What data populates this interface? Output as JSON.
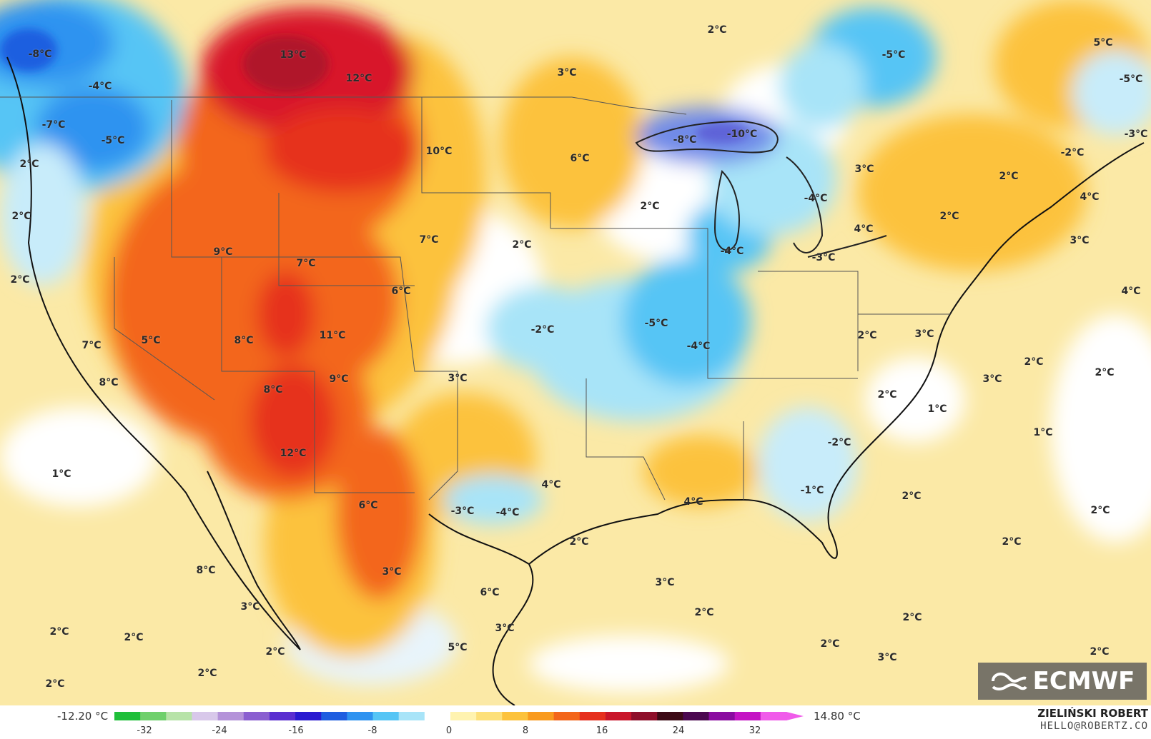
{
  "map": {
    "labels": [
      {
        "text": "-8°C"
      },
      {
        "text": "13°C"
      },
      {
        "text": "12°C"
      },
      {
        "text": "-4°C"
      },
      {
        "text": "3°C"
      },
      {
        "text": "2°C"
      },
      {
        "text": "-5°C"
      },
      {
        "text": "5°C"
      },
      {
        "text": "-7°C"
      },
      {
        "text": "-5°C"
      },
      {
        "text": "10°C"
      },
      {
        "text": "-5°C"
      },
      {
        "text": "6°C"
      },
      {
        "text": "-8°C"
      },
      {
        "text": "-10°C"
      },
      {
        "text": "-3°C"
      },
      {
        "text": "-2°C"
      },
      {
        "text": "2°C"
      },
      {
        "text": "3°C"
      },
      {
        "text": "2°C"
      },
      {
        "text": "4°C"
      },
      {
        "text": "2°C"
      },
      {
        "text": "2°C"
      },
      {
        "text": "-4°C"
      },
      {
        "text": "4°C"
      },
      {
        "text": "3°C"
      },
      {
        "text": "2°C"
      },
      {
        "text": "9°C"
      },
      {
        "text": "7°C"
      },
      {
        "text": "2°C"
      },
      {
        "text": "7°C"
      },
      {
        "text": "-4°C"
      },
      {
        "text": "-3°C"
      },
      {
        "text": "2°C"
      },
      {
        "text": "6°C"
      },
      {
        "text": "4°C"
      },
      {
        "text": "7°C"
      },
      {
        "text": "5°C"
      },
      {
        "text": "8°C"
      },
      {
        "text": "11°C"
      },
      {
        "text": "-2°C"
      },
      {
        "text": "-5°C"
      },
      {
        "text": "-4°C"
      },
      {
        "text": "2°C"
      },
      {
        "text": "3°C"
      },
      {
        "text": "2°C"
      },
      {
        "text": "2°C"
      },
      {
        "text": "8°C"
      },
      {
        "text": "8°C"
      },
      {
        "text": "9°C"
      },
      {
        "text": "3°C"
      },
      {
        "text": "2°C"
      },
      {
        "text": "1°C"
      },
      {
        "text": "3°C"
      },
      {
        "text": "12°C"
      },
      {
        "text": "-2°C"
      },
      {
        "text": "1°C"
      },
      {
        "text": "1°C"
      },
      {
        "text": "4°C"
      },
      {
        "text": "-1°C"
      },
      {
        "text": "4°C"
      },
      {
        "text": "6°C"
      },
      {
        "text": "-3°C"
      },
      {
        "text": "-4°C"
      },
      {
        "text": "2°C"
      },
      {
        "text": "2°C"
      },
      {
        "text": "2°C"
      },
      {
        "text": "2°C"
      },
      {
        "text": "8°C"
      },
      {
        "text": "3°C"
      },
      {
        "text": "6°C"
      },
      {
        "text": "3°C"
      },
      {
        "text": "3°C"
      },
      {
        "text": "3°C"
      },
      {
        "text": "2°C"
      },
      {
        "text": "2°C"
      },
      {
        "text": "2°C"
      },
      {
        "text": "5°C"
      },
      {
        "text": "2°C"
      },
      {
        "text": "2°C"
      },
      {
        "text": "2°C"
      },
      {
        "text": "3°C"
      },
      {
        "text": "2°C"
      },
      {
        "text": "2°C"
      },
      {
        "text": "2°C"
      }
    ]
  },
  "logo": {
    "text": "ECMWF",
    "icon": "ecmwf-logo-icon"
  },
  "legend": {
    "min_label": "-12.20 °C",
    "max_label": "14.80 °C",
    "ticks": [
      "-32",
      "-24",
      "-16",
      "-8",
      "0",
      "8",
      "16",
      "24",
      "32"
    ],
    "colors": [
      "#1fbf3a",
      "#6fd06c",
      "#b7e3a8",
      "#d8c8ea",
      "#b493d9",
      "#8a5fd0",
      "#5b2fd0",
      "#2a1bd0",
      "#1f5ee0",
      "#2f93f0",
      "#56c5f5",
      "#a8e4f8",
      "#ffffff",
      "#fff3b0",
      "#fde07a",
      "#fcc23c",
      "#f99a1e",
      "#f3661a",
      "#e6301e",
      "#c9162a",
      "#8e0f2a",
      "#3d0a16",
      "#4b0850",
      "#8a0ca0",
      "#c414c4",
      "#f05bea"
    ]
  },
  "colors": {
    "cold_deep": "#1f5ee0",
    "cold": "#56c5f5",
    "cool": "#c8ecfa",
    "neutral": "#ffffff",
    "mild": "#fbe9a6",
    "warm": "#fcc23c",
    "hot": "#f3661a",
    "very_hot": "#d8192a"
  },
  "credit": {
    "name": "ZIELIŃSKI ROBERT",
    "email": "HELLO@ROBERTZ.CO"
  }
}
